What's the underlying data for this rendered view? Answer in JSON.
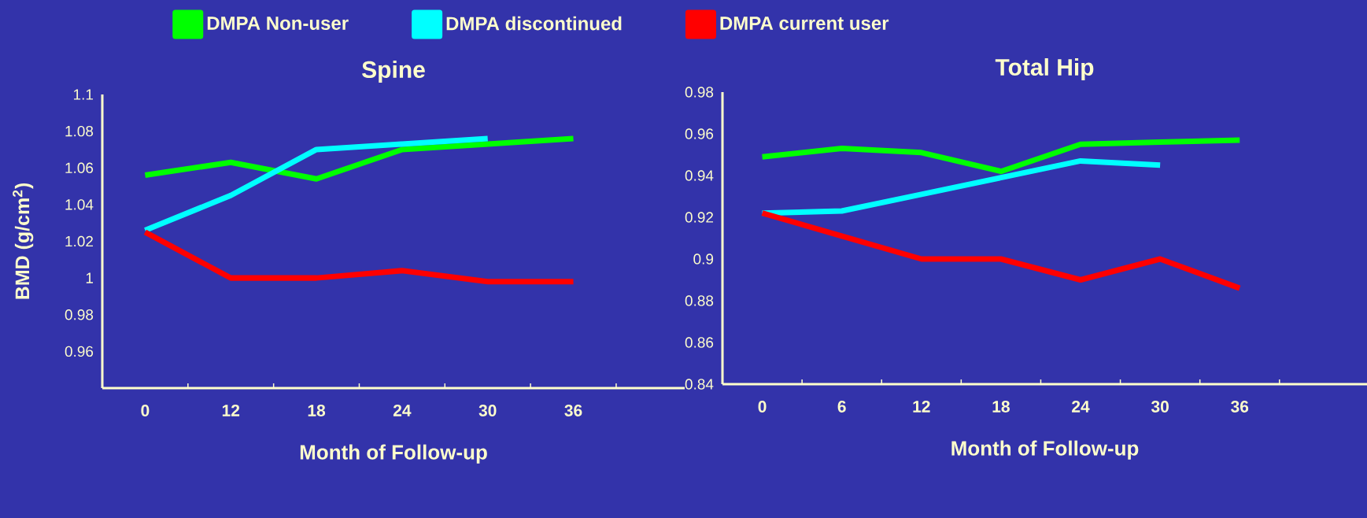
{
  "chart_data": [
    {
      "type": "line",
      "title": "Spine",
      "xlabel": "Month of Follow-up",
      "ylabel": "BMD (g/cm$^{2}$)",
      "categories": [
        "0",
        "12",
        "18",
        "24",
        "30",
        "36"
      ],
      "ylim": [
        0.94,
        1.1
      ],
      "yticks": [
        0.96,
        0.98,
        1,
        1.02,
        1.04,
        1.06,
        1.08,
        1.1
      ],
      "legend": "top",
      "line_style": "solid",
      "marker": "none",
      "series": [
        {
          "name": "DMPA Non-user",
          "color": "#00ff00",
          "values": [
            1.056,
            1.063,
            1.054,
            1.07,
            1.073,
            1.076
          ]
        },
        {
          "name": "DMPA discontinued",
          "color": "#00ffff",
          "values": [
            1.026,
            1.045,
            1.07,
            1.073,
            1.076,
            null
          ]
        },
        {
          "name": "DMPA current user",
          "color": "#ff0000",
          "values": [
            1.025,
            1.0,
            1.0,
            1.004,
            0.998,
            0.998
          ]
        }
      ]
    },
    {
      "type": "line",
      "title": "Total Hip",
      "xlabel": "Month of Follow-up",
      "categories": [
        "0",
        "6",
        "12",
        "18",
        "24",
        "30",
        "36"
      ],
      "ylim": [
        0.84,
        0.98
      ],
      "yticks": [
        0.84,
        0.86,
        0.88,
        0.9,
        0.92,
        0.94,
        0.96,
        0.98
      ],
      "line_style": "solid",
      "marker": "none",
      "series": [
        {
          "color": "#00ff00",
          "values": [
            0.949,
            0.953,
            0.951,
            0.942,
            0.955,
            0.956,
            0.957
          ]
        },
        {
          "color": "#00ffff",
          "values": [
            0.922,
            0.923,
            0.931,
            0.939,
            0.947,
            0.945,
            null
          ]
        },
        {
          "color": "#ff0000",
          "values": [
            0.922,
            0.911,
            0.9,
            0.9,
            0.89,
            0.9,
            0.886
          ]
        }
      ]
    }
  ]
}
